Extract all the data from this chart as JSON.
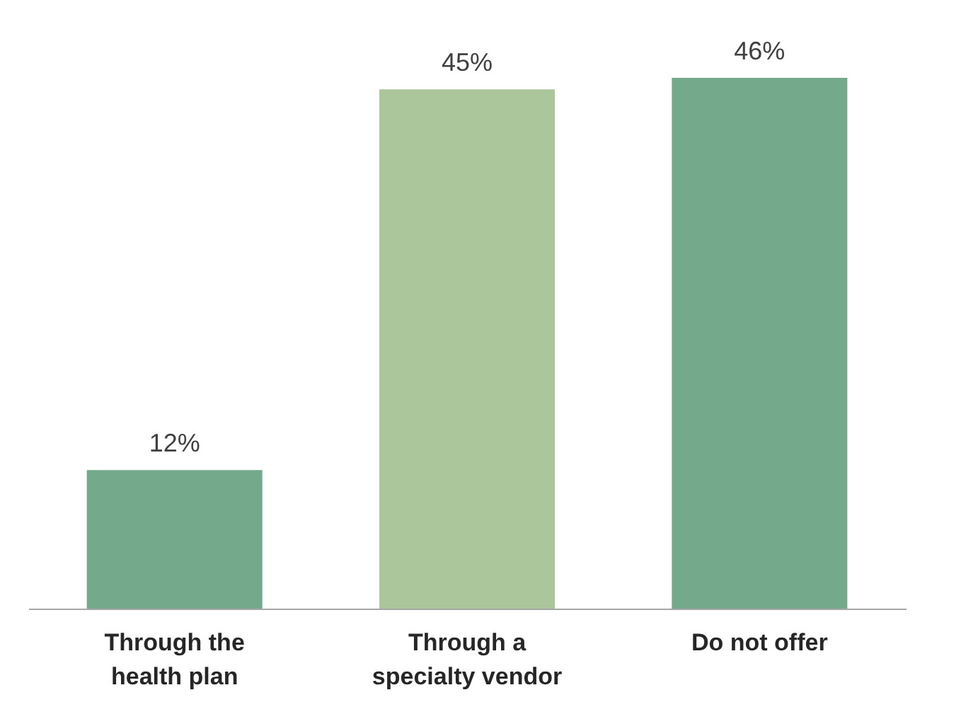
{
  "chart_data": {
    "type": "bar",
    "categories": [
      "Through the\nhealth plan",
      "Through a\nspecialty vendor",
      "Do not offer"
    ],
    "values": [
      12,
      45,
      46
    ],
    "colors": [
      "#74a98c",
      "#abc69b",
      "#74a98c"
    ],
    "value_labels": [
      "12%",
      "45%",
      "46%"
    ],
    "grid": false
  }
}
